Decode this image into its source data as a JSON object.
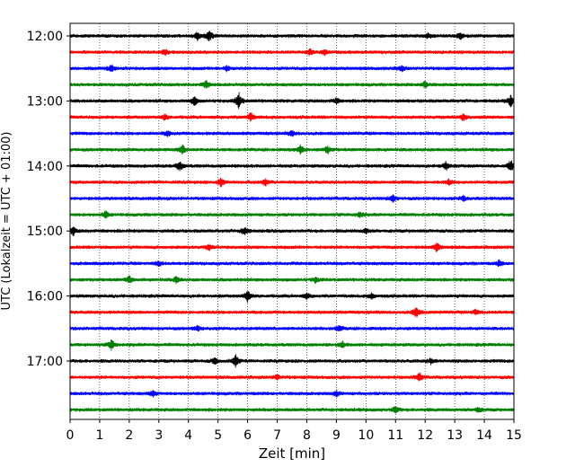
{
  "chart_data": {
    "type": "line",
    "title": "",
    "xlabel": "Zeit  [min]",
    "ylabel": "UTC (Lokalzeit = UTC + 01:00)",
    "xlim": [
      0,
      15
    ],
    "x_ticks": [
      "0",
      "1",
      "2",
      "3",
      "4",
      "5",
      "6",
      "7",
      "8",
      "9",
      "10",
      "11",
      "12",
      "13",
      "14",
      "15"
    ],
    "y_tick_labels": [
      "12:00",
      "13:00",
      "14:00",
      "15:00",
      "16:00",
      "17:00"
    ],
    "vertical_grid": true,
    "grid_style": "dotted",
    "trace_interval_minutes": 15,
    "colors_cycle": [
      "#000000",
      "#ff0000",
      "#0000ff",
      "#008000"
    ],
    "traces": [
      {
        "start": "12:00",
        "color": "#000000",
        "events": [
          {
            "x": 4.3,
            "a": 5
          },
          {
            "x": 4.7,
            "a": 7
          },
          {
            "x": 12.1,
            "a": 3
          },
          {
            "x": 13.2,
            "a": 4
          }
        ]
      },
      {
        "start": "12:15",
        "color": "#ff0000",
        "events": [
          {
            "x": 3.2,
            "a": 3
          },
          {
            "x": 8.1,
            "a": 4
          },
          {
            "x": 8.6,
            "a": 3
          }
        ]
      },
      {
        "start": "12:30",
        "color": "#0000ff",
        "events": [
          {
            "x": 1.4,
            "a": 4
          },
          {
            "x": 5.3,
            "a": 3
          },
          {
            "x": 11.2,
            "a": 3
          }
        ]
      },
      {
        "start": "12:45",
        "color": "#008000",
        "events": [
          {
            "x": 4.6,
            "a": 4
          },
          {
            "x": 12.0,
            "a": 4
          }
        ]
      },
      {
        "start": "13:00",
        "color": "#000000",
        "events": [
          {
            "x": 4.2,
            "a": 5
          },
          {
            "x": 5.7,
            "a": 9
          },
          {
            "x": 9.0,
            "a": 3
          },
          {
            "x": 14.9,
            "a": 6
          }
        ]
      },
      {
        "start": "13:15",
        "color": "#ff0000",
        "events": [
          {
            "x": 3.2,
            "a": 3
          },
          {
            "x": 6.1,
            "a": 5
          },
          {
            "x": 13.3,
            "a": 4
          }
        ]
      },
      {
        "start": "13:30",
        "color": "#0000ff",
        "events": [
          {
            "x": 3.3,
            "a": 3
          },
          {
            "x": 7.5,
            "a": 3
          }
        ]
      },
      {
        "start": "13:45",
        "color": "#008000",
        "events": [
          {
            "x": 3.8,
            "a": 5
          },
          {
            "x": 7.8,
            "a": 5
          },
          {
            "x": 8.7,
            "a": 4
          }
        ]
      },
      {
        "start": "14:00",
        "color": "#000000",
        "events": [
          {
            "x": 3.7,
            "a": 6
          },
          {
            "x": 12.7,
            "a": 5
          },
          {
            "x": 14.9,
            "a": 7
          }
        ]
      },
      {
        "start": "14:15",
        "color": "#ff0000",
        "events": [
          {
            "x": 5.1,
            "a": 5
          },
          {
            "x": 6.6,
            "a": 4
          },
          {
            "x": 12.8,
            "a": 3
          }
        ]
      },
      {
        "start": "14:30",
        "color": "#0000ff",
        "events": [
          {
            "x": 10.9,
            "a": 4
          },
          {
            "x": 13.3,
            "a": 3
          }
        ]
      },
      {
        "start": "14:45",
        "color": "#008000",
        "events": [
          {
            "x": 1.2,
            "a": 4
          },
          {
            "x": 9.8,
            "a": 3
          }
        ]
      },
      {
        "start": "15:00",
        "color": "#000000",
        "events": [
          {
            "x": 0.1,
            "a": 5
          },
          {
            "x": 5.9,
            "a": 5
          },
          {
            "x": 10.0,
            "a": 3
          }
        ]
      },
      {
        "start": "15:15",
        "color": "#ff0000",
        "events": [
          {
            "x": 4.7,
            "a": 3
          },
          {
            "x": 12.4,
            "a": 5
          }
        ]
      },
      {
        "start": "15:30",
        "color": "#0000ff",
        "events": [
          {
            "x": 3.0,
            "a": 3
          },
          {
            "x": 14.5,
            "a": 3
          }
        ]
      },
      {
        "start": "15:45",
        "color": "#008000",
        "events": [
          {
            "x": 2.0,
            "a": 4
          },
          {
            "x": 3.6,
            "a": 4
          },
          {
            "x": 8.3,
            "a": 3
          }
        ]
      },
      {
        "start": "16:00",
        "color": "#000000",
        "events": [
          {
            "x": 6.0,
            "a": 7
          },
          {
            "x": 8.0,
            "a": 3
          },
          {
            "x": 10.2,
            "a": 3
          }
        ]
      },
      {
        "start": "16:15",
        "color": "#ff0000",
        "events": [
          {
            "x": 11.7,
            "a": 6
          },
          {
            "x": 13.7,
            "a": 3
          }
        ]
      },
      {
        "start": "16:30",
        "color": "#0000ff",
        "events": [
          {
            "x": 4.3,
            "a": 3
          },
          {
            "x": 9.1,
            "a": 3
          }
        ]
      },
      {
        "start": "16:45",
        "color": "#008000",
        "events": [
          {
            "x": 1.4,
            "a": 6
          },
          {
            "x": 9.2,
            "a": 3
          }
        ]
      },
      {
        "start": "17:00",
        "color": "#000000",
        "events": [
          {
            "x": 4.9,
            "a": 4
          },
          {
            "x": 5.6,
            "a": 7
          },
          {
            "x": 12.2,
            "a": 3
          }
        ]
      },
      {
        "start": "17:15",
        "color": "#ff0000",
        "events": [
          {
            "x": 7.0,
            "a": 3
          },
          {
            "x": 11.8,
            "a": 5
          }
        ]
      },
      {
        "start": "17:30",
        "color": "#0000ff",
        "events": [
          {
            "x": 2.8,
            "a": 3
          },
          {
            "x": 9.0,
            "a": 3
          }
        ]
      },
      {
        "start": "17:45",
        "color": "#008000",
        "events": [
          {
            "x": 11.0,
            "a": 4
          },
          {
            "x": 13.8,
            "a": 3
          }
        ]
      }
    ]
  }
}
